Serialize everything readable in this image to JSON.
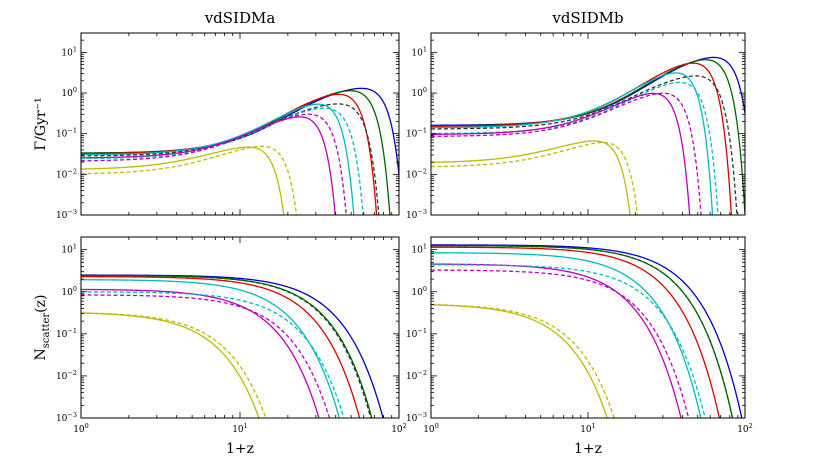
{
  "chart_data": [
    {
      "type": "line",
      "id": "top-left",
      "title": "vdSIDMa",
      "ylabel": "Γ/Gyr⁻¹",
      "xlabel": "",
      "xscale": "log",
      "yscale": "log",
      "xlim": [
        1,
        100
      ],
      "ylim": [
        0.001,
        30
      ],
      "series": [
        {
          "name": "blue solid",
          "color": "#0000cc",
          "dash": "solid",
          "kind": "rate",
          "v0": 0.033,
          "xp": 20,
          "vp": 2.3,
          "xc": 90,
          "steep": 7.0
        },
        {
          "name": "green solid",
          "color": "#006400",
          "dash": "solid",
          "kind": "rate",
          "v0": 0.033,
          "xp": 19,
          "vp": 2.25,
          "xc": 75,
          "steep": 7.0
        },
        {
          "name": "red solid",
          "color": "#dd0000",
          "dash": "solid",
          "kind": "rate",
          "v0": 0.032,
          "xp": 18,
          "vp": 2.1,
          "xc": 62,
          "steep": 7.0
        },
        {
          "name": "cyan solid",
          "color": "#00bbbb",
          "dash": "solid",
          "kind": "rate",
          "v0": 0.03,
          "xp": 16,
          "vp": 1.45,
          "xc": 45,
          "steep": 7.0
        },
        {
          "name": "black dashed",
          "color": "#333333",
          "dash": "dashed",
          "kind": "rate",
          "v0": 0.028,
          "xp": 15,
          "vp": 0.9,
          "xc": 65,
          "steep": 7.0
        },
        {
          "name": "magenta solid",
          "color": "#bb00bb",
          "dash": "solid",
          "kind": "rate",
          "v0": 0.025,
          "xp": 13,
          "vp": 0.65,
          "xc": 35,
          "steep": 7.0
        },
        {
          "name": "cyan dashed",
          "color": "#00bbbb",
          "dash": "dashed",
          "kind": "rate",
          "v0": 0.024,
          "xp": 14,
          "vp": 0.8,
          "xc": 52,
          "steep": 7.0
        },
        {
          "name": "magenta dashed",
          "color": "#bb00bb",
          "dash": "dashed",
          "kind": "rate",
          "v0": 0.021,
          "xp": 12,
          "vp": 0.6,
          "xc": 41,
          "steep": 7.0
        },
        {
          "name": "yellow solid",
          "color": "#bbbb00",
          "dash": "solid",
          "kind": "rate",
          "v0": 0.013,
          "xp": 7,
          "vp": 0.09,
          "xc": 17.5,
          "steep": 7.0
        },
        {
          "name": "yellow dashed",
          "color": "#bbbb00",
          "dash": "dashed",
          "kind": "rate",
          "v0": 0.01,
          "xp": 8,
          "vp": 0.1,
          "xc": 21,
          "steep": 7.0
        }
      ]
    },
    {
      "type": "line",
      "id": "top-right",
      "title": "vdSIDMb",
      "ylabel": "",
      "xlabel": "",
      "xscale": "log",
      "yscale": "log",
      "xlim": [
        1,
        100
      ],
      "ylim": [
        0.001,
        30
      ],
      "series": [
        {
          "name": "blue solid",
          "color": "#0000cc",
          "dash": "solid",
          "kind": "rate",
          "v0": 0.16,
          "xp": 24,
          "vp": 15.5,
          "xc": 95,
          "steep": 7.0
        },
        {
          "name": "green solid",
          "color": "#006400",
          "dash": "solid",
          "kind": "rate",
          "v0": 0.155,
          "xp": 23,
          "vp": 15,
          "xc": 83,
          "steep": 7.0
        },
        {
          "name": "red solid",
          "color": "#dd0000",
          "dash": "solid",
          "kind": "rate",
          "v0": 0.15,
          "xp": 21,
          "vp": 14,
          "xc": 68,
          "steep": 7.0
        },
        {
          "name": "cyan solid",
          "color": "#00bbbb",
          "dash": "solid",
          "kind": "rate",
          "v0": 0.14,
          "xp": 19,
          "vp": 9.5,
          "xc": 52,
          "steep": 7.0
        },
        {
          "name": "black dashed",
          "color": "#333333",
          "dash": "dashed",
          "kind": "rate",
          "v0": 0.13,
          "xp": 19,
          "vp": 4.8,
          "xc": 75,
          "steep": 7.0
        },
        {
          "name": "cyan dashed",
          "color": "#00bbbb",
          "dash": "dashed",
          "kind": "rate",
          "v0": 0.1,
          "xp": 18,
          "vp": 4.2,
          "xc": 57,
          "steep": 7.0
        },
        {
          "name": "magenta solid",
          "color": "#bb00bb",
          "dash": "solid",
          "kind": "rate",
          "v0": 0.095,
          "xp": 15,
          "vp": 2.7,
          "xc": 38,
          "steep": 7.0
        },
        {
          "name": "magenta dashed",
          "color": "#bb00bb",
          "dash": "dashed",
          "kind": "rate",
          "v0": 0.085,
          "xp": 15,
          "vp": 2.2,
          "xc": 45,
          "steep": 7.0
        },
        {
          "name": "yellow solid",
          "color": "#bbbb00",
          "dash": "solid",
          "kind": "rate",
          "v0": 0.019,
          "xp": 7,
          "vp": 0.13,
          "xc": 17,
          "steep": 7.0
        },
        {
          "name": "yellow dashed",
          "color": "#bbbb00",
          "dash": "dashed",
          "kind": "rate",
          "v0": 0.015,
          "xp": 8,
          "vp": 0.13,
          "xc": 19,
          "steep": 7.0
        }
      ]
    },
    {
      "type": "line",
      "id": "bottom-left",
      "title": "",
      "ylabel": "N_scatter(z)",
      "xlabel": "1+z",
      "xscale": "log",
      "yscale": "log",
      "xlim": [
        1,
        100
      ],
      "ylim": [
        0.001,
        20
      ],
      "series": [
        {
          "name": "blue solid",
          "color": "#0000cc",
          "dash": "solid",
          "kind": "count",
          "v0": 2.5,
          "xc": 74
        },
        {
          "name": "black dashed",
          "color": "#333333",
          "dash": "dashed",
          "kind": "count",
          "v0": 2.45,
          "xc": 62
        },
        {
          "name": "green solid",
          "color": "#006400",
          "dash": "solid",
          "kind": "count",
          "v0": 2.45,
          "xc": 63
        },
        {
          "name": "red solid",
          "color": "#dd0000",
          "dash": "solid",
          "kind": "count",
          "v0": 2.3,
          "xc": 53
        },
        {
          "name": "cyan solid",
          "color": "#00bbbb",
          "dash": "solid",
          "kind": "count",
          "v0": 1.95,
          "xc": 40
        },
        {
          "name": "magenta solid",
          "color": "#bb00bb",
          "dash": "solid",
          "kind": "count",
          "v0": 1.15,
          "xc": 31
        },
        {
          "name": "cyan dashed",
          "color": "#00bbbb",
          "dash": "dashed",
          "kind": "count",
          "v0": 1.0,
          "xc": 45
        },
        {
          "name": "magenta dashed",
          "color": "#bb00bb",
          "dash": "dashed",
          "kind": "count",
          "v0": 0.85,
          "xc": 37
        },
        {
          "name": "yellow solid",
          "color": "#bbbb00",
          "dash": "solid",
          "kind": "count",
          "v0": 0.33,
          "xc": 14.5
        },
        {
          "name": "yellow dashed",
          "color": "#bbbb00",
          "dash": "dashed",
          "kind": "count",
          "v0": 0.33,
          "xc": 16
        }
      ]
    },
    {
      "type": "line",
      "id": "bottom-right",
      "title": "",
      "ylabel": "",
      "xlabel": "1+z",
      "xscale": "log",
      "yscale": "log",
      "xlim": [
        1,
        100
      ],
      "ylim": [
        0.001,
        20
      ],
      "series": [
        {
          "name": "blue solid",
          "color": "#0000cc",
          "dash": "solid",
          "kind": "count",
          "v0": 13,
          "xc": 80
        },
        {
          "name": "black dashed",
          "color": "#333333",
          "dash": "dashed",
          "kind": "count",
          "v0": 12.5,
          "xc": 70
        },
        {
          "name": "green solid",
          "color": "#006400",
          "dash": "solid",
          "kind": "count",
          "v0": 12.5,
          "xc": 70
        },
        {
          "name": "red solid",
          "color": "#dd0000",
          "dash": "solid",
          "kind": "count",
          "v0": 11.5,
          "xc": 58
        },
        {
          "name": "cyan solid",
          "color": "#00bbbb",
          "dash": "solid",
          "kind": "count",
          "v0": 8.5,
          "xc": 45
        },
        {
          "name": "magenta solid",
          "color": "#bb00bb",
          "dash": "solid",
          "kind": "count",
          "v0": 4.6,
          "xc": 35
        },
        {
          "name": "cyan dashed",
          "color": "#00bbbb",
          "dash": "dashed",
          "kind": "count",
          "v0": 4.4,
          "xc": 50
        },
        {
          "name": "magenta dashed",
          "color": "#bb00bb",
          "dash": "dashed",
          "kind": "count",
          "v0": 3.3,
          "xc": 40
        },
        {
          "name": "yellow solid",
          "color": "#bbbb00",
          "dash": "solid",
          "kind": "count",
          "v0": 0.52,
          "xc": 14
        },
        {
          "name": "yellow dashed",
          "color": "#bbbb00",
          "dash": "dashed",
          "kind": "count",
          "v0": 0.52,
          "xc": 15.5
        }
      ]
    }
  ],
  "tick_labels": {
    "top_y": [
      {
        "base": "10",
        "exp": "1",
        "value": 10
      },
      {
        "base": "10",
        "exp": "0",
        "value": 1
      },
      {
        "base": "10",
        "exp": "−1",
        "value": 0.1
      },
      {
        "base": "10",
        "exp": "−2",
        "value": 0.01
      },
      {
        "base": "10",
        "exp": "−3",
        "value": 0.001
      }
    ],
    "bottom_y": [
      {
        "base": "10",
        "exp": "1",
        "value": 10
      },
      {
        "base": "10",
        "exp": "0",
        "value": 1
      },
      {
        "base": "10",
        "exp": "−1",
        "value": 0.1
      },
      {
        "base": "10",
        "exp": "−2",
        "value": 0.01
      },
      {
        "base": "10",
        "exp": "−3",
        "value": 0.001
      }
    ],
    "x": [
      {
        "base": "10",
        "exp": "0",
        "value": 1
      },
      {
        "base": "10",
        "exp": "1",
        "value": 10
      },
      {
        "base": "10",
        "exp": "2",
        "value": 100
      }
    ]
  }
}
